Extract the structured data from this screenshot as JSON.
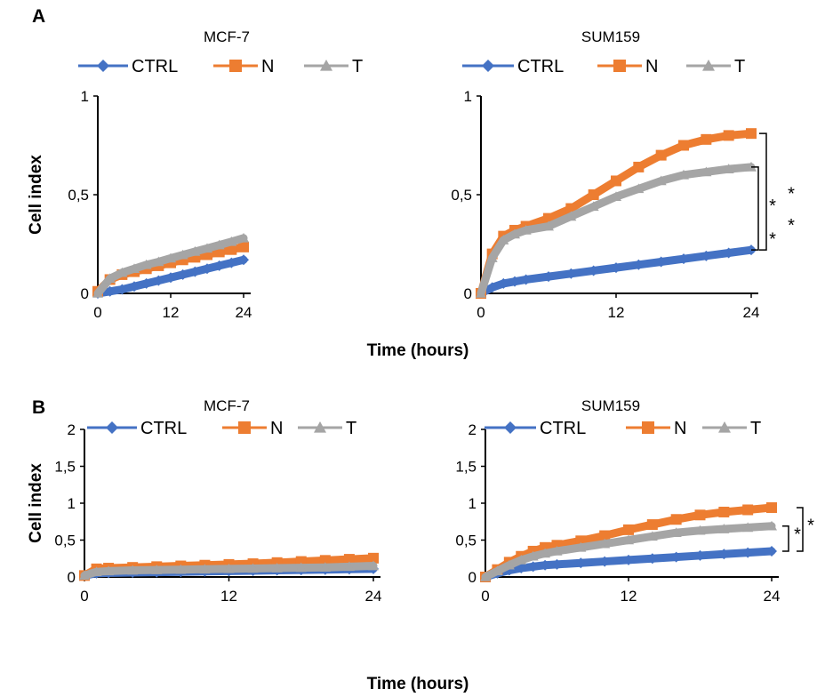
{
  "panels": {
    "a_label": "A",
    "b_label": "B"
  },
  "colors": {
    "ctrl": "#4472C4",
    "n": "#ED7D31",
    "t": "#A5A5A5"
  },
  "chart_data": [
    {
      "id": "A-MCF-7",
      "type": "line",
      "title": "MCF-7",
      "ylabel": "Cell index",
      "xlabel": "",
      "xlim": [
        0,
        24
      ],
      "ylim": [
        0,
        1
      ],
      "xticks": [
        "0",
        "12",
        "24"
      ],
      "yticks": [
        "0",
        "0,5",
        "1"
      ],
      "legend": "top",
      "x": [
        0,
        2,
        4,
        6,
        8,
        10,
        12,
        14,
        16,
        18,
        20,
        22,
        24
      ],
      "series": [
        {
          "name": "CTRL",
          "color": "#4472C4",
          "marker": "diamond",
          "values": [
            0.0,
            0.01,
            0.02,
            0.035,
            0.05,
            0.065,
            0.08,
            0.095,
            0.11,
            0.125,
            0.14,
            0.155,
            0.17
          ]
        },
        {
          "name": "N",
          "color": "#ED7D31",
          "marker": "square",
          "values": [
            0.01,
            0.07,
            0.095,
            0.11,
            0.125,
            0.14,
            0.155,
            0.17,
            0.183,
            0.196,
            0.21,
            0.222,
            0.235
          ]
        },
        {
          "name": "T",
          "color": "#A5A5A5",
          "marker": "triangle",
          "values": [
            0.0,
            0.075,
            0.105,
            0.125,
            0.145,
            0.16,
            0.178,
            0.195,
            0.212,
            0.228,
            0.245,
            0.262,
            0.28
          ]
        }
      ],
      "annotations": []
    },
    {
      "id": "A-SUM159",
      "type": "line",
      "title": "SUM159",
      "ylabel": "",
      "xlabel": "Time (hours)",
      "xlim": [
        0,
        24
      ],
      "ylim": [
        0,
        1
      ],
      "xticks": [
        "0",
        "12",
        "24"
      ],
      "yticks": [
        "0",
        "0,5",
        "1"
      ],
      "legend": "top",
      "x": [
        0,
        1,
        2,
        3,
        4,
        6,
        8,
        10,
        12,
        14,
        16,
        18,
        20,
        22,
        24
      ],
      "series": [
        {
          "name": "CTRL",
          "color": "#4472C4",
          "marker": "diamond",
          "values": [
            0.0,
            0.03,
            0.05,
            0.06,
            0.07,
            0.085,
            0.1,
            0.115,
            0.13,
            0.145,
            0.16,
            0.175,
            0.19,
            0.205,
            0.22
          ]
        },
        {
          "name": "N",
          "color": "#ED7D31",
          "marker": "square",
          "values": [
            0.0,
            0.2,
            0.29,
            0.32,
            0.34,
            0.38,
            0.43,
            0.5,
            0.57,
            0.64,
            0.7,
            0.75,
            0.78,
            0.8,
            0.81
          ]
        },
        {
          "name": "T",
          "color": "#A5A5A5",
          "marker": "triangle",
          "values": [
            0.0,
            0.18,
            0.27,
            0.3,
            0.32,
            0.34,
            0.39,
            0.44,
            0.49,
            0.53,
            0.57,
            0.6,
            0.615,
            0.63,
            0.64
          ]
        }
      ],
      "annotations": [
        "*",
        "*",
        "*",
        "*"
      ]
    },
    {
      "id": "B-MCF-7",
      "type": "line",
      "title": "MCF-7",
      "ylabel": "Cell index",
      "xlabel": "",
      "xlim": [
        0,
        24
      ],
      "ylim": [
        0,
        2
      ],
      "xticks": [
        "0",
        "12",
        "24"
      ],
      "yticks": [
        "0",
        "0,5",
        "1",
        "1,5",
        "2"
      ],
      "legend": "top",
      "x": [
        0,
        1,
        2,
        4,
        6,
        8,
        10,
        12,
        14,
        16,
        18,
        20,
        22,
        24
      ],
      "series": [
        {
          "name": "CTRL",
          "color": "#4472C4",
          "marker": "diamond",
          "values": [
            0.02,
            0.05,
            0.055,
            0.06,
            0.065,
            0.07,
            0.075,
            0.08,
            0.085,
            0.09,
            0.095,
            0.1,
            0.105,
            0.11
          ]
        },
        {
          "name": "N",
          "color": "#ED7D31",
          "marker": "square",
          "values": [
            0.02,
            0.11,
            0.12,
            0.13,
            0.14,
            0.15,
            0.16,
            0.17,
            0.18,
            0.195,
            0.21,
            0.225,
            0.24,
            0.255
          ]
        },
        {
          "name": "T",
          "color": "#A5A5A5",
          "marker": "triangle",
          "values": [
            0.02,
            0.07,
            0.08,
            0.09,
            0.095,
            0.1,
            0.105,
            0.11,
            0.115,
            0.12,
            0.125,
            0.13,
            0.14,
            0.15
          ]
        }
      ],
      "annotations": []
    },
    {
      "id": "B-SUM159",
      "type": "line",
      "title": "SUM159",
      "ylabel": "",
      "xlabel": "Time (hours)",
      "xlim": [
        0,
        24
      ],
      "ylim": [
        0,
        2
      ],
      "xticks": [
        "0",
        "12",
        "24"
      ],
      "yticks": [
        "0",
        "0,5",
        "1",
        "1,5",
        "2"
      ],
      "legend": "top",
      "x": [
        0,
        1,
        2,
        3,
        4,
        5,
        6,
        8,
        10,
        12,
        14,
        16,
        18,
        20,
        22,
        24
      ],
      "series": [
        {
          "name": "CTRL",
          "color": "#4472C4",
          "marker": "diamond",
          "values": [
            0.0,
            0.05,
            0.09,
            0.12,
            0.14,
            0.16,
            0.17,
            0.19,
            0.21,
            0.23,
            0.25,
            0.27,
            0.29,
            0.31,
            0.33,
            0.35
          ]
        },
        {
          "name": "N",
          "color": "#ED7D31",
          "marker": "square",
          "values": [
            0.0,
            0.1,
            0.2,
            0.28,
            0.35,
            0.4,
            0.43,
            0.49,
            0.56,
            0.64,
            0.71,
            0.78,
            0.84,
            0.88,
            0.91,
            0.94
          ]
        },
        {
          "name": "T",
          "color": "#A5A5A5",
          "marker": "triangle",
          "values": [
            0.0,
            0.08,
            0.16,
            0.23,
            0.28,
            0.32,
            0.35,
            0.4,
            0.45,
            0.5,
            0.55,
            0.6,
            0.63,
            0.65,
            0.67,
            0.69
          ]
        }
      ],
      "annotations": [
        "*",
        "*"
      ]
    }
  ]
}
